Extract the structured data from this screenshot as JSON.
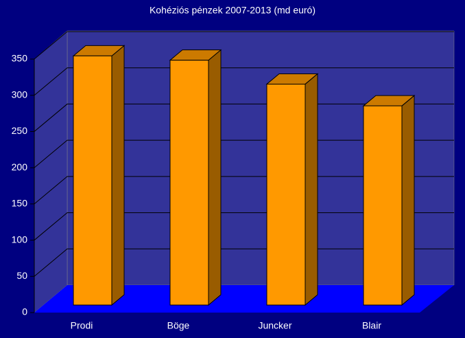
{
  "chart_data": {
    "type": "bar3d",
    "title": "Kohéziós pénzek 2007-2013 (md euró)",
    "categories": [
      "Prodi",
      "Böge",
      "Juncker",
      "Blair"
    ],
    "values": [
      344,
      338,
      305,
      275
    ],
    "color": "#ff9900",
    "ylim": [
      0,
      350
    ],
    "yticks": [
      0,
      50,
      100,
      150,
      200,
      250,
      300,
      350
    ],
    "grid": true
  }
}
